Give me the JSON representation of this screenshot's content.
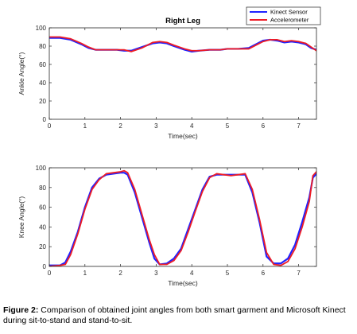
{
  "caption": {
    "label": "Figure 2:",
    "text": " Comparison of obtained joint angles from both smart garment and Microsoft Kinect during sit-to-stand and stand-to-sit."
  },
  "chart_data": [
    {
      "type": "line",
      "title": "Right Leg",
      "xlabel": "Time(sec)",
      "ylabel": "Ankle Angle(°)",
      "xlim": [
        0,
        7.5
      ],
      "ylim": [
        0,
        100
      ],
      "xticks": [
        0,
        1,
        2,
        3,
        4,
        5,
        6,
        7
      ],
      "yticks": [
        0,
        20,
        40,
        60,
        80,
        100
      ],
      "legend": {
        "position": "top-right"
      },
      "series": [
        {
          "name": "Kinect Sensor",
          "color": "#1f22ff",
          "x": [
            0,
            0.3,
            0.6,
            0.9,
            1.1,
            1.3,
            1.6,
            1.9,
            2.1,
            2.3,
            2.6,
            2.9,
            3.1,
            3.3,
            3.5,
            3.8,
            4.0,
            4.2,
            4.5,
            4.8,
            5.0,
            5.3,
            5.6,
            5.8,
            6.0,
            6.2,
            6.4,
            6.6,
            6.8,
            7.0,
            7.2,
            7.35,
            7.5
          ],
          "values": [
            89,
            89,
            87,
            82,
            78,
            76,
            76,
            76,
            75,
            75,
            79,
            83,
            84,
            83,
            80,
            76,
            74,
            75,
            76,
            76,
            77,
            77,
            78,
            82,
            86,
            87,
            86,
            84,
            85,
            84,
            82,
            78,
            76
          ]
        },
        {
          "name": "Accelerometer",
          "color": "#ee1c25",
          "x": [
            0,
            0.3,
            0.6,
            0.9,
            1.1,
            1.3,
            1.6,
            1.9,
            2.1,
            2.3,
            2.6,
            2.9,
            3.1,
            3.3,
            3.5,
            3.8,
            4.0,
            4.2,
            4.5,
            4.8,
            5.0,
            5.3,
            5.6,
            5.8,
            6.0,
            6.2,
            6.4,
            6.6,
            6.8,
            7.0,
            7.2,
            7.35,
            7.5
          ],
          "values": [
            90,
            90,
            88,
            83,
            79,
            76,
            76,
            76,
            76,
            74,
            78,
            84,
            85,
            84,
            81,
            77,
            75,
            75,
            76,
            76,
            77,
            77,
            77,
            81,
            85,
            87,
            87,
            85,
            86,
            85,
            83,
            79,
            75
          ]
        }
      ]
    },
    {
      "type": "line",
      "title": "",
      "xlabel": "Time(sec)",
      "ylabel": "Knee Angle(°)",
      "xlim": [
        0,
        7.5
      ],
      "ylim": [
        0,
        100
      ],
      "xticks": [
        0,
        1,
        2,
        3,
        4,
        5,
        6,
        7
      ],
      "yticks": [
        0,
        20,
        40,
        60,
        80,
        100
      ],
      "series": [
        {
          "name": "Kinect Sensor",
          "color": "#1f22ff",
          "x": [
            0,
            0.3,
            0.45,
            0.6,
            0.8,
            1.0,
            1.2,
            1.4,
            1.6,
            1.8,
            2.0,
            2.1,
            2.2,
            2.4,
            2.6,
            2.8,
            2.95,
            3.1,
            3.3,
            3.5,
            3.7,
            3.9,
            4.1,
            4.3,
            4.5,
            4.7,
            4.9,
            5.1,
            5.3,
            5.5,
            5.7,
            5.9,
            6.1,
            6.3,
            6.5,
            6.7,
            6.9,
            7.1,
            7.3,
            7.4,
            7.5
          ],
          "values": [
            1,
            1,
            4,
            15,
            35,
            60,
            80,
            89,
            93,
            94,
            95,
            95,
            93,
            75,
            50,
            25,
            8,
            2,
            3,
            8,
            18,
            38,
            58,
            78,
            91,
            93,
            93,
            93,
            93,
            93,
            75,
            45,
            10,
            3,
            3,
            8,
            22,
            45,
            70,
            90,
            94
          ]
        },
        {
          "name": "Accelerometer",
          "color": "#ee1c25",
          "x": [
            0,
            0.3,
            0.45,
            0.6,
            0.8,
            1.0,
            1.2,
            1.4,
            1.6,
            1.8,
            2.0,
            2.1,
            2.2,
            2.4,
            2.6,
            2.8,
            2.95,
            3.1,
            3.3,
            3.5,
            3.7,
            3.9,
            4.1,
            4.3,
            4.5,
            4.7,
            4.9,
            5.1,
            5.3,
            5.5,
            5.7,
            5.9,
            6.1,
            6.3,
            6.5,
            6.7,
            6.9,
            7.1,
            7.3,
            7.4,
            7.5
          ],
          "values": [
            0,
            1,
            2,
            12,
            33,
            58,
            78,
            88,
            94,
            95,
            96,
            97,
            95,
            78,
            53,
            28,
            12,
            2,
            2,
            6,
            16,
            35,
            56,
            76,
            90,
            94,
            93,
            92,
            93,
            94,
            78,
            48,
            14,
            2,
            1,
            5,
            18,
            40,
            66,
            92,
            96
          ]
        }
      ]
    }
  ]
}
